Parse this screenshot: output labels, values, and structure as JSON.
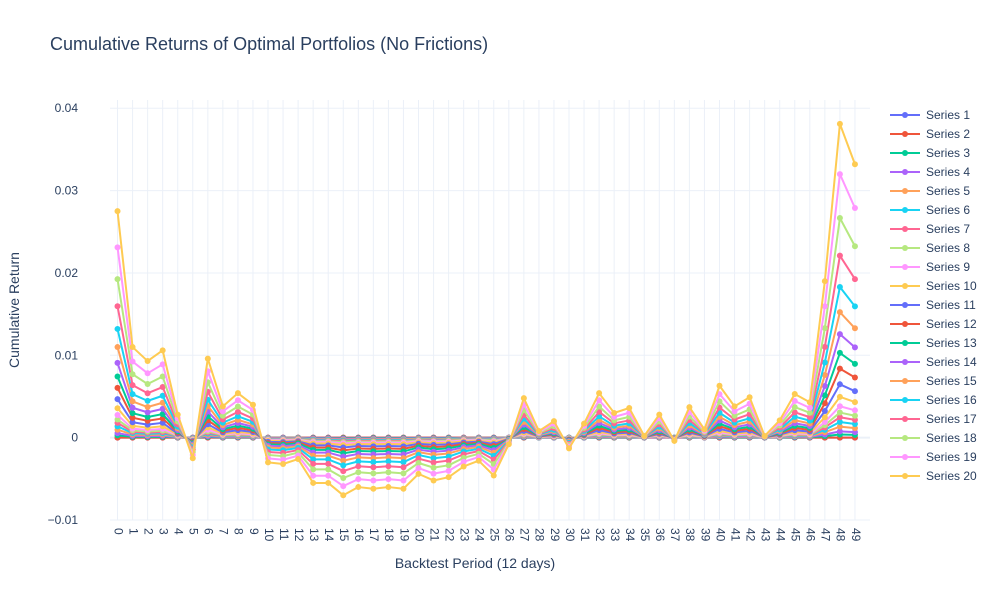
{
  "chart_data": {
    "type": "line",
    "title": "Cumulative Returns of Optimal Portfolios (No Frictions)",
    "xlabel": "Backtest Period (12 days)",
    "ylabel": "Cumulative Return",
    "xlim": [
      -0.5,
      50.0
    ],
    "ylim": [
      -0.01,
      0.041
    ],
    "y_ticks": [
      -0.01,
      0,
      0.01,
      0.02,
      0.03,
      0.04
    ],
    "y_tick_labels": [
      "−0.01",
      "0",
      "0.01",
      "0.02",
      "0.03",
      "0.04"
    ],
    "x_ticks": [
      0,
      1,
      2,
      3,
      4,
      5,
      6,
      7,
      8,
      9,
      10,
      11,
      12,
      13,
      14,
      15,
      16,
      17,
      18,
      19,
      20,
      21,
      22,
      23,
      24,
      25,
      26,
      27,
      28,
      29,
      30,
      31,
      32,
      33,
      34,
      35,
      36,
      37,
      38,
      39,
      40,
      41,
      42,
      43,
      44,
      45,
      46,
      47,
      48,
      49
    ],
    "grid": true,
    "legend_placement": "right",
    "colors": [
      "#636efa",
      "#EF553B",
      "#00cc96",
      "#ab63fa",
      "#FFA15A",
      "#19d3f3",
      "#FF6692",
      "#B6E880",
      "#FF97FF",
      "#FECB52",
      "#636efa",
      "#EF553B",
      "#00cc96",
      "#ab63fa",
      "#FFA15A",
      "#19d3f3",
      "#FF6692",
      "#B6E880",
      "#FF97FF",
      "#FECB52"
    ],
    "series_names": [
      "Series 1",
      "Series 2",
      "Series 3",
      "Series 4",
      "Series 5",
      "Series 6",
      "Series 7",
      "Series 8",
      "Series 9",
      "Series 10",
      "Series 11",
      "Series 12",
      "Series 13",
      "Series 14",
      "Series 15",
      "Series 16",
      "Series 17",
      "Series 18",
      "Series 19",
      "Series 20"
    ],
    "series_scale": [
      0.0,
      0.0,
      0.01,
      0.02,
      0.035,
      0.05,
      0.065,
      0.08,
      0.1,
      0.13,
      0.17,
      0.22,
      0.27,
      0.33,
      0.4,
      0.48,
      0.58,
      0.7,
      0.84,
      1.0
    ],
    "base_values": [
      0.0275,
      0.011,
      0.0093,
      0.0106,
      0.0028,
      -0.0025,
      0.0096,
      0.0038,
      0.0054,
      0.004,
      -0.003,
      -0.0032,
      -0.0026,
      -0.0055,
      -0.0055,
      -0.007,
      -0.006,
      -0.0062,
      -0.006,
      -0.0062,
      -0.0044,
      -0.0052,
      -0.0048,
      -0.0035,
      -0.0028,
      -0.0046,
      -0.0008,
      0.0048,
      0.0008,
      0.002,
      -0.0013,
      0.0017,
      0.0054,
      0.003,
      0.0036,
      0.0002,
      0.0028,
      -0.0004,
      0.0037,
      0.001,
      0.0063,
      0.0038,
      0.0049,
      0.0002,
      0.0021,
      0.0053,
      0.0043,
      0.019,
      0.0381,
      0.0332
    ]
  }
}
